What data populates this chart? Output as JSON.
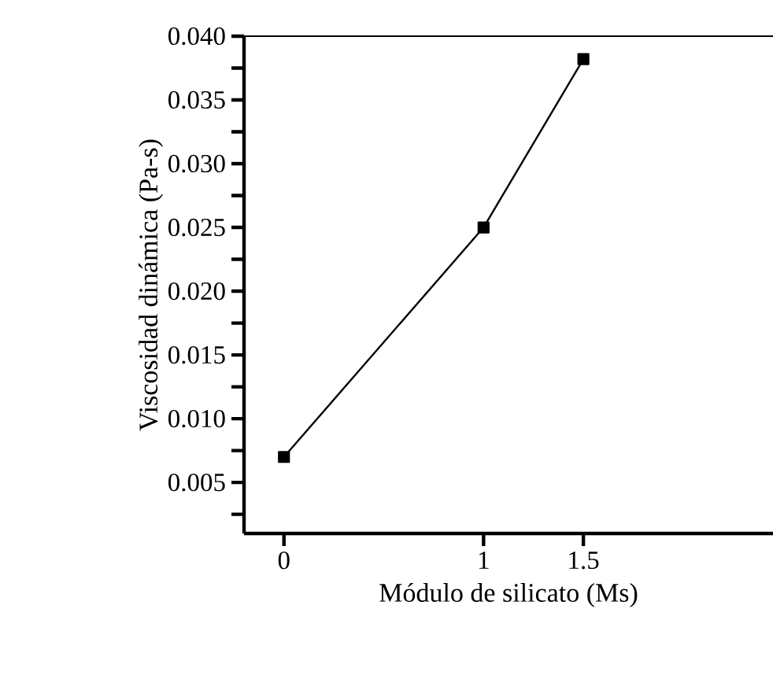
{
  "chart_data": {
    "type": "line",
    "xlabel": "Módulo de silicato (Ms)",
    "ylabel": "Viscosidad dinámica (Pa-s)",
    "x": [
      0,
      1,
      1.5
    ],
    "series": [
      {
        "color": "#000000",
        "values": [
          0.007,
          0.025,
          0.0382
        ]
      }
    ],
    "marker": "square",
    "line_style": "solid",
    "xlim": [
      -0.2,
      2.45
    ],
    "xticks": [
      0,
      1,
      1.5
    ],
    "ylim": [
      0.001,
      0.04
    ],
    "yticks": [
      {
        "value": 0.0025,
        "label": null
      },
      {
        "value": 0.005,
        "label": "0.005"
      },
      {
        "value": 0.0075,
        "label": null
      },
      {
        "value": 0.01,
        "label": "0.010"
      },
      {
        "value": 0.0125,
        "label": null
      },
      {
        "value": 0.015,
        "label": "0.015"
      },
      {
        "value": 0.0175,
        "label": null
      },
      {
        "value": 0.02,
        "label": "0.020"
      },
      {
        "value": 0.0225,
        "label": null
      },
      {
        "value": 0.025,
        "label": "0.025"
      },
      {
        "value": 0.0275,
        "label": null
      },
      {
        "value": 0.03,
        "label": "0.030"
      },
      {
        "value": 0.0325,
        "label": null
      },
      {
        "value": 0.035,
        "label": "0.035"
      },
      {
        "value": 0.0375,
        "label": null
      },
      {
        "value": 0.04,
        "label": "0.040"
      }
    ]
  }
}
